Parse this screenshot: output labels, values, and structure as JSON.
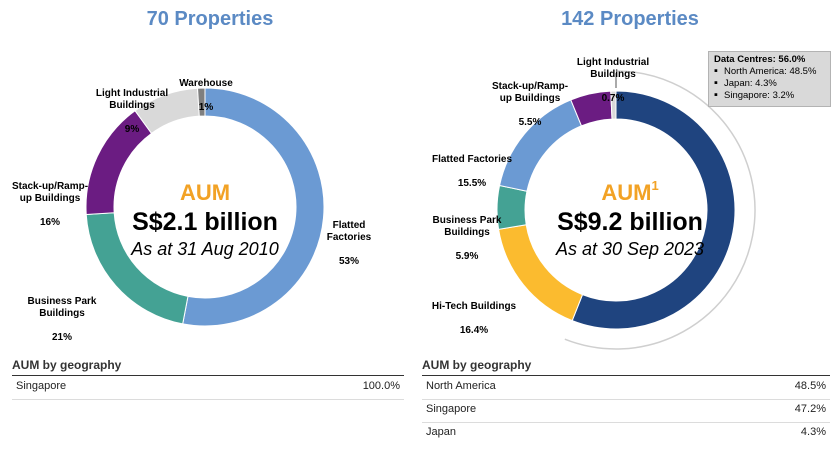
{
  "left": {
    "title": "70 Properties",
    "center": {
      "aum_label": "AUM",
      "value": "S$2.1 billion",
      "date": "As at 31 Aug 2010"
    },
    "geo_header": "AUM by geography",
    "geo_rows": [
      {
        "name": "Singapore",
        "value": "100.0%"
      }
    ]
  },
  "right": {
    "title": "142 Properties",
    "center": {
      "aum_label": "AUM",
      "aum_superscript": "1",
      "value": "S$9.2 billion",
      "date": "As at 30 Sep 2023"
    },
    "geo_header": "AUM by geography",
    "geo_rows": [
      {
        "name": "North America",
        "value": "48.5%"
      },
      {
        "name": "Singapore",
        "value": "47.2%"
      },
      {
        "name": "Japan",
        "value": "4.3%"
      }
    ],
    "callout": {
      "title": "Data Centres: 56.0%",
      "items": [
        "North America: 48.5%",
        "Japan: 4.3%",
        "Singapore: 3.2%"
      ]
    }
  },
  "chart_data": [
    {
      "type": "pie",
      "style": "donut",
      "title": "70 Properties",
      "segments": [
        {
          "label": "Flatted Factories",
          "value": 53,
          "value_label": "53%",
          "color": "#6b9ad3"
        },
        {
          "label": "Business Park Buildings",
          "value": 21,
          "value_label": "21%",
          "color": "#44a294"
        },
        {
          "label": "Stack-up/Ramp-up Buildings",
          "value": 16,
          "value_label": "16%",
          "color": "#6b1c82"
        },
        {
          "label": "Light Industrial Buildings",
          "value": 9,
          "value_label": "9%",
          "color": "#d9d9d9"
        },
        {
          "label": "Warehouse",
          "value": 1,
          "value_label": "1%",
          "color": "#7f7f7f"
        }
      ]
    },
    {
      "type": "pie",
      "style": "donut",
      "title": "142 Properties",
      "segments": [
        {
          "label": "Data Centres",
          "value": 56.0,
          "value_label": "56.0%",
          "color": "#1f447f"
        },
        {
          "label": "Hi-Tech Buildings",
          "value": 16.4,
          "value_label": "16.4%",
          "color": "#fbbb2f"
        },
        {
          "label": "Business Park Buildings",
          "value": 5.9,
          "value_label": "5.9%",
          "color": "#44a294"
        },
        {
          "label": "Flatted Factories",
          "value": 15.5,
          "value_label": "15.5%",
          "color": "#6b9ad3"
        },
        {
          "label": "Stack-up/Ramp-up Buildings",
          "value": 5.5,
          "value_label": "5.5%",
          "color": "#6b1c82"
        },
        {
          "label": "Light Industrial Buildings",
          "value": 0.7,
          "value_label": "0.7%",
          "color": "#d9d9d9"
        }
      ]
    }
  ]
}
